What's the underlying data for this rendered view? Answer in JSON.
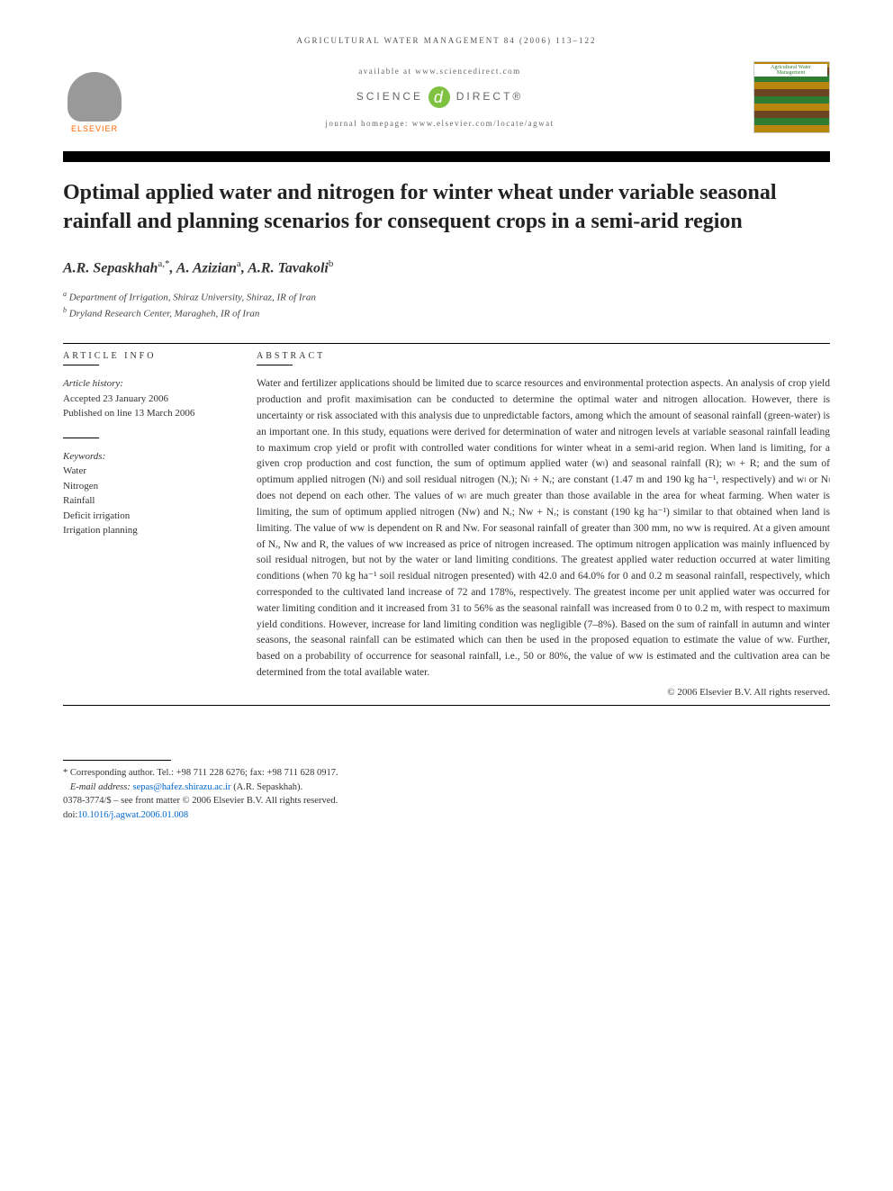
{
  "header": {
    "journal_citation": "AGRICULTURAL WATER MANAGEMENT 84 (2006) 113–122",
    "available_at": "available at www.sciencedirect.com",
    "sciencedirect_left": "SCIENCE",
    "sciencedirect_right": "DIRECT®",
    "homepage": "journal homepage: www.elsevier.com/locate/agwat",
    "elsevier": "ELSEVIER",
    "journal_logo_text": "Agricultural Water Management"
  },
  "title": "Optimal applied water and nitrogen for winter wheat under variable seasonal rainfall and planning scenarios for consequent crops in a semi-arid region",
  "authors_html": "A.R. Sepaskhah",
  "author1": "A.R. Sepaskhah",
  "author1_sup": "a,*",
  "author2": "A. Azizian",
  "author2_sup": "a",
  "author3": "A.R. Tavakoli",
  "author3_sup": "b",
  "affiliations": {
    "a": "Department of Irrigation, Shiraz University, Shiraz, IR of Iran",
    "b": "Dryland Research Center, Maragheh, IR of Iran"
  },
  "article_info": {
    "heading": "ARTICLE INFO",
    "history_label": "Article history:",
    "accepted": "Accepted 23 January 2006",
    "published": "Published on line 13 March 2006",
    "keywords_label": "Keywords:",
    "keywords": [
      "Water",
      "Nitrogen",
      "Rainfall",
      "Deficit irrigation",
      "Irrigation planning"
    ]
  },
  "abstract": {
    "heading": "ABSTRACT",
    "text": "Water and fertilizer applications should be limited due to scarce resources and environmental protection aspects. An analysis of crop yield production and profit maximisation can be conducted to determine the optimal water and nitrogen allocation. However, there is uncertainty or risk associated with this analysis due to unpredictable factors, among which the amount of seasonal rainfall (green-water) is an important one. In this study, equations were derived for determination of water and nitrogen levels at variable seasonal rainfall leading to maximum crop yield or profit with controlled water conditions for winter wheat in a semi-arid region. When land is limiting, for a given crop production and cost function, the sum of optimum applied water (wₗ) and seasonal rainfall (R); wₗ + R; and the sum of optimum applied nitrogen (Nₗ) and soil residual nitrogen (Nᵣ); Nₗ + Nᵣ; are constant (1.47 m and 190 kg ha⁻¹, respectively) and wₗ or Nₗ does not depend on each other. The values of wₗ are much greater than those available in the area for wheat farming. When water is limiting, the sum of optimum applied nitrogen (Nw) and Nᵣ; Nw + Nᵣ; is constant (190 kg ha⁻¹) similar to that obtained when land is limiting. The value of ww is dependent on R and Nw. For seasonal rainfall of greater than 300 mm, no ww is required. At a given amount of Nᵣ, Nw and R, the values of ww increased as price of nitrogen increased. The optimum nitrogen application was mainly influenced by soil residual nitrogen, but not by the water or land limiting conditions. The greatest applied water reduction occurred at water limiting conditions (when 70 kg ha⁻¹ soil residual nitrogen presented) with 42.0 and 64.0% for 0 and 0.2 m seasonal rainfall, respectively, which corresponded to the cultivated land increase of 72 and 178%, respectively. The greatest income per unit applied water was occurred for water limiting condition and it increased from 31 to 56% as the seasonal rainfall was increased from 0 to 0.2 m, with respect to maximum yield conditions. However, increase for land limiting condition was negligible (7–8%). Based on the sum of rainfall in autumn and winter seasons, the seasonal rainfall can be estimated which can then be used in the proposed equation to estimate the value of ww. Further, based on a probability of occurrence for seasonal rainfall, i.e., 50 or 80%, the value of ww is estimated and the cultivation area can be determined from the total available water.",
    "copyright": "© 2006 Elsevier B.V. All rights reserved."
  },
  "footer": {
    "corresponding": "* Corresponding author. Tel.: +98 711 228 6276; fax: +98 711 628 0917.",
    "email_label": "E-mail address:",
    "email": "sepas@hafez.shirazu.ac.ir",
    "email_attribution": "(A.R. Sepaskhah).",
    "issn": "0378-3774/$ – see front matter © 2006 Elsevier B.V. All rights reserved.",
    "doi_label": "doi:",
    "doi": "10.1016/j.agwat.2006.01.008"
  }
}
